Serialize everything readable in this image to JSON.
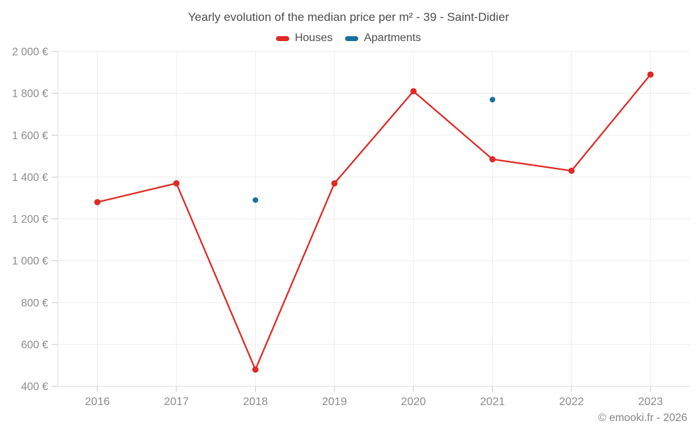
{
  "chart_data": {
    "type": "line",
    "title": "Yearly evolution of the median price per m² - 39 - Saint-Didier",
    "legend_position": "top",
    "grid": true,
    "categories": [
      "2016",
      "2017",
      "2018",
      "2019",
      "2020",
      "2021",
      "2022",
      "2023"
    ],
    "series": [
      {
        "name": "Houses",
        "color": "#e02824",
        "marker_radius": 4.5,
        "values": [
          1280,
          1370,
          480,
          1370,
          1810,
          1485,
          1430,
          1890
        ]
      },
      {
        "name": "Apartments",
        "color": "#1a6fa0",
        "marker_radius": 4,
        "values": [
          null,
          null,
          1290,
          null,
          null,
          1770,
          null,
          null
        ]
      }
    ],
    "xlabel": "",
    "ylabel": "",
    "ylim": [
      400,
      2000
    ],
    "yticks": {
      "values": [
        400,
        600,
        800,
        1000,
        1200,
        1400,
        1600,
        1800,
        2000
      ],
      "labels": [
        "400 €",
        "600 €",
        "800 €",
        "1 000 €",
        "1 200 €",
        "1 400 €",
        "1 600 €",
        "1 800 €",
        "2 000 €"
      ]
    },
    "style": {
      "grid_color": "#ededed",
      "axis_color": "#dcdcdc",
      "tick_color": "#c9c9c9",
      "tick_label_color": "#8b8b8b",
      "title_color": "#4c4c4c"
    },
    "footer": "© emooki.fr - 2026"
  }
}
